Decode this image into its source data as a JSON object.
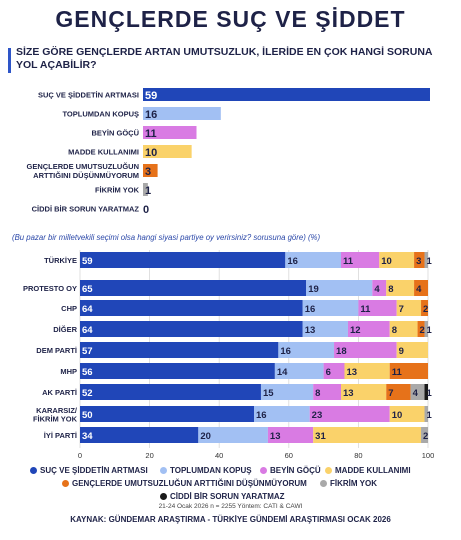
{
  "title": "GENÇLERDE SUÇ VE ŞİDDET",
  "question": "SİZE GÖRE GENÇLERDE ARTAN UMUTSUZLUK, İLERİDE EN ÇOK HANGİ SORUNA YOL AÇABİLİR?",
  "question2": "(Bu pazar bir milletvekili seçimi olsa hangi siyasi partiye oy verirsiniz? sorusuna göre) (%)",
  "meta": "21-24 Ocak 2026 n = 2255 Yöntem: CATI & CAWI",
  "source": "KAYNAK: GÜNDEMAR ARAŞTIRMA - TÜRKİYE GÜNDEMİ ARAŞTIRMASI OCAK 2026",
  "colors": [
    "#2046b8",
    "#a2c0f3",
    "#d97be3",
    "#fad26a",
    "#e6721a",
    "#a9a9a9",
    "#1a1a1a"
  ],
  "chart_data": [
    {
      "type": "bar",
      "orientation": "horizontal",
      "categories": [
        "SUÇ VE ŞİDDETİN ARTMASI",
        "TOPLUMDAN KOPUŞ",
        "BEYİN GÖÇÜ",
        "MADDE KULLANIMI",
        "GENÇLERDE UMUTSUZLUĞUN ARTTIĞINI DÜŞÜNMÜYORUM",
        "FİKRİM YOK",
        "CİDDİ BİR SORUN YARATMAZ"
      ],
      "category_lines": [
        [
          "SUÇ VE ŞİDDETİN ARTMASI"
        ],
        [
          "TOPLUMDAN KOPUŞ"
        ],
        [
          "BEYİN GÖÇÜ"
        ],
        [
          "MADDE KULLANIMI"
        ],
        [
          "GENÇLERDE UMUTSUZLUĞUN",
          "ARTTIĞINI DÜŞÜNMÜYORUM"
        ],
        [
          "FİKRİM YOK"
        ],
        [
          "CİDDİ BİR SORUN YARATMAZ"
        ]
      ],
      "values": [
        59,
        16,
        11,
        10,
        3,
        1,
        0
      ],
      "xlim": [
        0,
        59
      ]
    },
    {
      "type": "bar",
      "orientation": "horizontal",
      "stacked": true,
      "categories": [
        "TÜRKİYE",
        "PROTESTO OY",
        "CHP",
        "DİĞER",
        "DEM PARTİ",
        "MHP",
        "AK PARTİ",
        "KARARSIZ/ FİKRİM YOK",
        "İYİ PARTİ"
      ],
      "category_lines": [
        [
          "TÜRKİYE"
        ],
        [
          "PROTESTO OY"
        ],
        [
          "CHP"
        ],
        [
          "DİĞER"
        ],
        [
          "DEM PARTİ"
        ],
        [
          "MHP"
        ],
        [
          "AK PARTİ"
        ],
        [
          "KARARSIZ/",
          "FİKRİM YOK"
        ],
        [
          "İYİ PARTİ"
        ]
      ],
      "series": [
        {
          "name": "SUÇ VE ŞİDDETİN ARTMASI",
          "values": [
            59,
            65,
            64,
            64,
            57,
            56,
            52,
            50,
            34
          ]
        },
        {
          "name": "TOPLUMDAN KOPUŞ",
          "values": [
            16,
            19,
            16,
            13,
            16,
            14,
            15,
            16,
            20
          ]
        },
        {
          "name": "BEYİN GÖÇÜ",
          "values": [
            11,
            4,
            11,
            12,
            18,
            6,
            8,
            23,
            13
          ]
        },
        {
          "name": "MADDE KULLANIMI",
          "values": [
            10,
            8,
            7,
            8,
            9,
            13,
            13,
            10,
            31
          ]
        },
        {
          "name": "GENÇLERDE UMUTSUZLUĞUN ARTTIĞINI DÜŞÜNMÜYORUM",
          "values": [
            3,
            4,
            2,
            2,
            0,
            11,
            7,
            0,
            0
          ]
        },
        {
          "name": "FİKRİM YOK",
          "values": [
            1,
            0,
            0,
            1,
            0,
            0,
            4,
            1,
            2
          ]
        },
        {
          "name": "CİDDİ BİR SORUN YARATMAZ",
          "values": [
            0,
            0,
            0,
            0,
            0,
            0,
            1,
            0,
            0
          ]
        }
      ],
      "xlim": [
        0,
        100
      ],
      "xticks": [
        0,
        20,
        40,
        60,
        80,
        100
      ]
    }
  ],
  "legend": [
    "SUÇ VE ŞİDDETİN ARTMASI",
    "TOPLUMDAN KOPUŞ",
    "BEYİN GÖÇÜ",
    "MADDE KULLANIMI",
    "GENÇLERDE UMUTSUZLUĞUN ARTTIĞINI DÜŞÜNMÜYORUM",
    "FİKRİM YOK",
    "CİDDİ BİR SORUN YARATMAZ"
  ]
}
